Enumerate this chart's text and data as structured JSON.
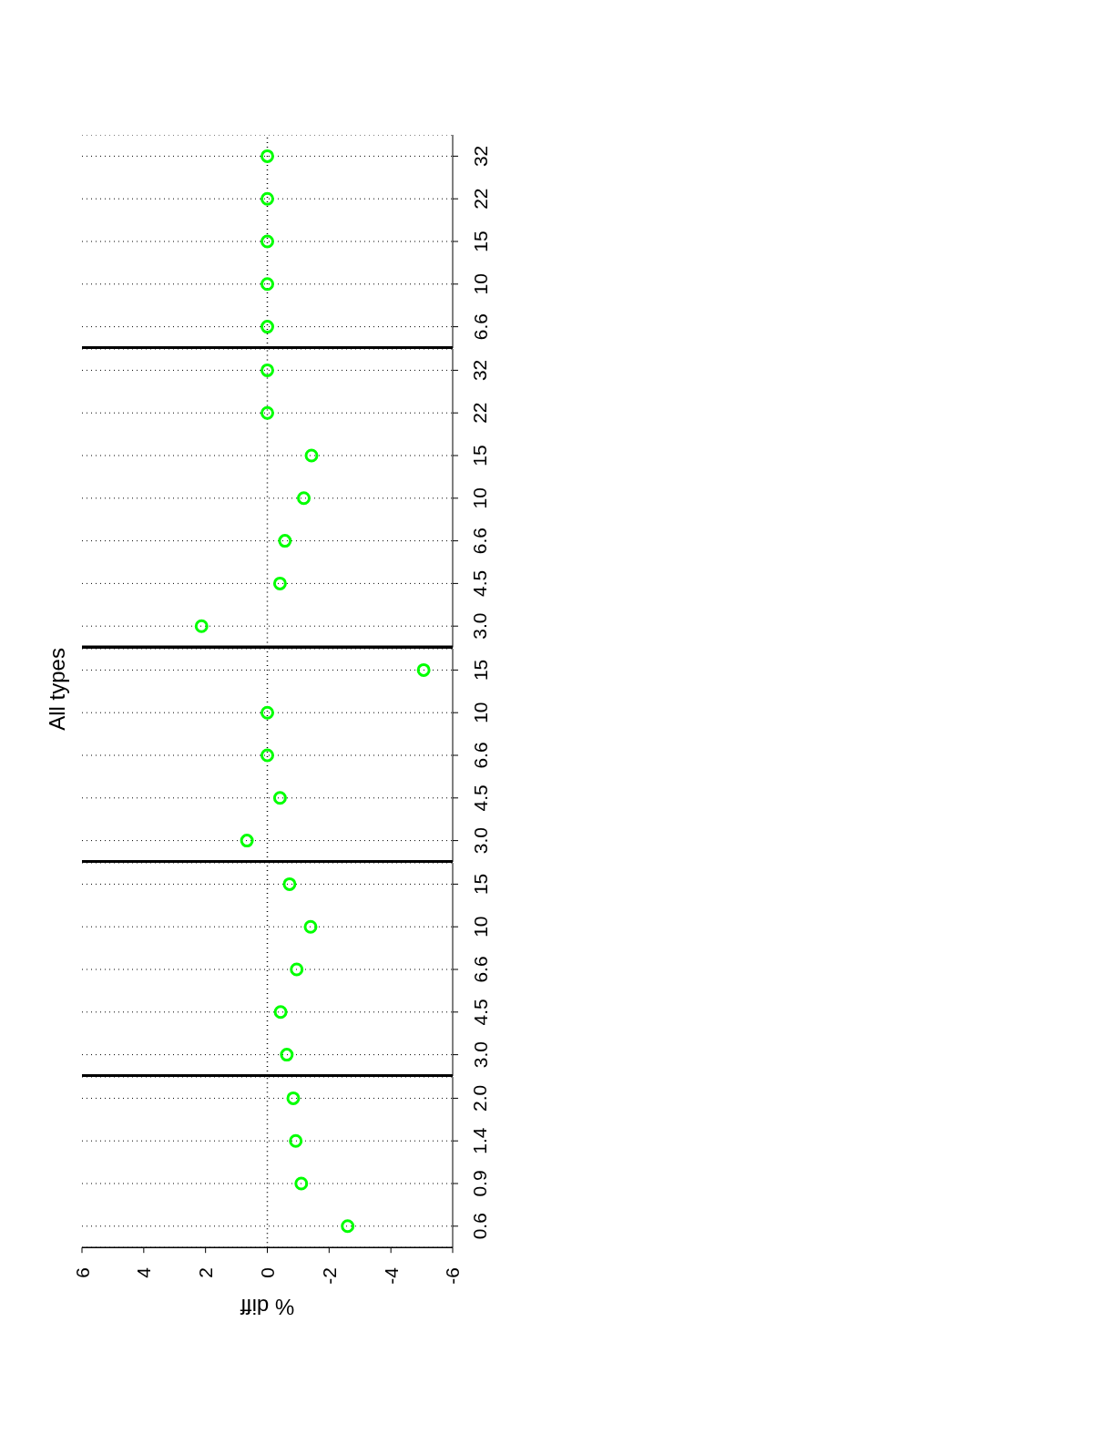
{
  "chart_data": [
    {
      "type": "scatter",
      "title": "All types",
      "orientation": "horizontal",
      "categories": [
        "32",
        "22",
        "15",
        "10",
        "6.6"
      ],
      "series": [
        {
          "color": "#00ff00",
          "values": [
            0,
            0,
            0,
            0,
            0
          ]
        }
      ],
      "xlim": [
        6,
        -6
      ],
      "xticks": [
        6,
        4,
        2,
        0,
        -2,
        -4,
        -6
      ],
      "tick_labels": "y",
      "grid": "y",
      "marker": "circle",
      "ref_lines": [
        {
          "axis": "x",
          "value": 0,
          "color": "#000000",
          "line_style": "dotted"
        }
      ]
    },
    {
      "type": "scatter",
      "orientation": "horizontal",
      "categories": [
        "32",
        "22",
        "15",
        "10",
        "6.6",
        "4.5",
        "3.0"
      ],
      "series": [
        {
          "color": "#00ff00",
          "values": [
            0,
            0,
            -1.43,
            -1.18,
            -0.57,
            -0.41,
            2.13
          ]
        }
      ],
      "xlim": [
        6,
        -6
      ],
      "xticks": [
        6,
        4,
        2,
        0,
        -2,
        -4,
        -6
      ],
      "tick_labels": "y",
      "grid": "y",
      "marker": "circle",
      "ref_lines": [
        {
          "axis": "x",
          "value": 0,
          "color": "#000000",
          "line_style": "dotted"
        }
      ]
    },
    {
      "type": "scatter",
      "orientation": "horizontal",
      "categories": [
        "15",
        "10",
        "6.6",
        "4.5",
        "3.0"
      ],
      "series": [
        {
          "color": "#00ff00",
          "values": [
            -5.06,
            0,
            0,
            -0.41,
            0.66
          ]
        }
      ],
      "xlim": [
        6,
        -6
      ],
      "xticks": [
        6,
        4,
        2,
        0,
        -2,
        -4,
        -6
      ],
      "tick_labels": "y",
      "grid": "y",
      "marker": "circle",
      "ref_lines": [
        {
          "axis": "x",
          "value": 0,
          "color": "#000000",
          "line_style": "dotted"
        }
      ]
    },
    {
      "type": "scatter",
      "orientation": "horizontal",
      "categories": [
        "15",
        "10",
        "6.6",
        "4.5",
        "3.0"
      ],
      "series": [
        {
          "color": "#00ff00",
          "values": [
            -0.72,
            -1.4,
            -0.95,
            -0.43,
            -0.63
          ]
        }
      ],
      "xlim": [
        6,
        -6
      ],
      "xticks": [
        6,
        4,
        2,
        0,
        -2,
        -4,
        -6
      ],
      "tick_labels": "y",
      "grid": "y",
      "marker": "circle",
      "ref_lines": [
        {
          "axis": "x",
          "value": 0,
          "color": "#000000",
          "line_style": "dotted"
        }
      ]
    },
    {
      "type": "scatter",
      "xlabel": "% diff",
      "orientation": "horizontal",
      "categories": [
        "2.0",
        "1.4",
        "0.9",
        "0.6"
      ],
      "series": [
        {
          "color": "#00ff00",
          "values": [
            -0.84,
            -0.92,
            -1.1,
            -2.6
          ]
        }
      ],
      "xlim": [
        6,
        -6
      ],
      "xticks": [
        6,
        4,
        2,
        0,
        -2,
        -4,
        -6
      ],
      "grid": "y",
      "marker": "circle",
      "ref_lines": [
        {
          "axis": "x",
          "value": 0,
          "color": "#000000",
          "line_style": "dotted"
        }
      ]
    }
  ]
}
